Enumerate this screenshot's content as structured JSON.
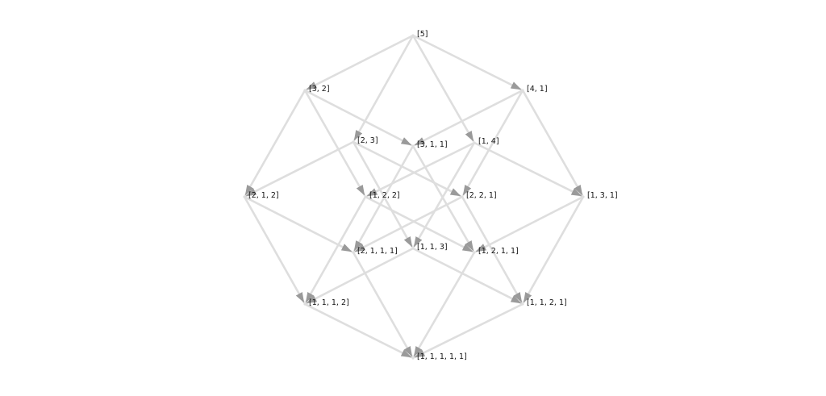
{
  "diagram": {
    "type": "directed-graph",
    "edge_color": "#dedede",
    "arrow_color": "#9a9a9a",
    "label_color": "#111111",
    "nodes": [
      {
        "id": "5",
        "label": "[5]"
      },
      {
        "id": "32",
        "label": "[3, 2]"
      },
      {
        "id": "41",
        "label": "[4, 1]"
      },
      {
        "id": "23",
        "label": "[2, 3]"
      },
      {
        "id": "311",
        "label": "[3, 1, 1]"
      },
      {
        "id": "14",
        "label": "[1, 4]"
      },
      {
        "id": "212",
        "label": "[2, 1, 2]"
      },
      {
        "id": "122",
        "label": "[1, 2, 2]"
      },
      {
        "id": "221",
        "label": "[2, 2, 1]"
      },
      {
        "id": "131",
        "label": "[1, 3, 1]"
      },
      {
        "id": "2111",
        "label": "[2, 1, 1, 1]"
      },
      {
        "id": "113",
        "label": "[1, 1, 3]"
      },
      {
        "id": "1211",
        "label": "[1, 2, 1, 1]"
      },
      {
        "id": "1112",
        "label": "[1, 1, 1, 2]"
      },
      {
        "id": "1121",
        "label": "[1, 1, 2, 1]"
      },
      {
        "id": "11111",
        "label": "[1, 1, 1, 1, 1]"
      }
    ],
    "edges": [
      {
        "from": "5",
        "to": "32"
      },
      {
        "from": "5",
        "to": "41"
      },
      {
        "from": "5",
        "to": "23"
      },
      {
        "from": "5",
        "to": "14"
      },
      {
        "from": "32",
        "to": "212"
      },
      {
        "from": "32",
        "to": "311"
      },
      {
        "from": "32",
        "to": "122"
      },
      {
        "from": "41",
        "to": "311"
      },
      {
        "from": "41",
        "to": "131"
      },
      {
        "from": "41",
        "to": "221"
      },
      {
        "from": "23",
        "to": "212"
      },
      {
        "from": "23",
        "to": "221"
      },
      {
        "from": "23",
        "to": "113"
      },
      {
        "from": "14",
        "to": "131"
      },
      {
        "from": "14",
        "to": "122"
      },
      {
        "from": "14",
        "to": "113"
      },
      {
        "from": "311",
        "to": "2111"
      },
      {
        "from": "311",
        "to": "1211"
      },
      {
        "from": "212",
        "to": "2111"
      },
      {
        "from": "212",
        "to": "1112"
      },
      {
        "from": "122",
        "to": "1211"
      },
      {
        "from": "122",
        "to": "1112"
      },
      {
        "from": "221",
        "to": "2111"
      },
      {
        "from": "221",
        "to": "1121"
      },
      {
        "from": "131",
        "to": "1211"
      },
      {
        "from": "131",
        "to": "1121"
      },
      {
        "from": "113",
        "to": "1112"
      },
      {
        "from": "113",
        "to": "1121"
      },
      {
        "from": "2111",
        "to": "11111"
      },
      {
        "from": "1211",
        "to": "11111"
      },
      {
        "from": "1112",
        "to": "11111"
      },
      {
        "from": "1121",
        "to": "11111"
      }
    ]
  }
}
